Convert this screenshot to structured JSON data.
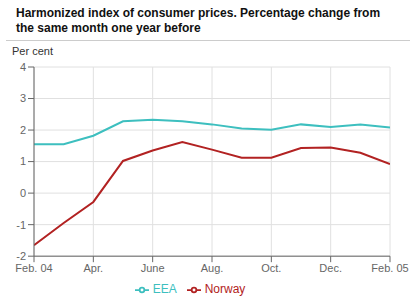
{
  "chart_data": {
    "type": "line",
    "title": "Harmonized index of consumer prices. Percentage change from the same month one year before",
    "y_label": "Per cent",
    "x": [
      0,
      1,
      2,
      3,
      4,
      5,
      6,
      7,
      8,
      9,
      10,
      11,
      12
    ],
    "xlim": [
      0,
      12
    ],
    "xticks": [
      {
        "value": 0,
        "label": "Feb. 04"
      },
      {
        "value": 2,
        "label": "Apr."
      },
      {
        "value": 4,
        "label": "June"
      },
      {
        "value": 6,
        "label": "Aug."
      },
      {
        "value": 8,
        "label": "Oct."
      },
      {
        "value": 10,
        "label": "Dec."
      },
      {
        "value": 12,
        "label": "Feb. 05"
      }
    ],
    "ylim": [
      -2,
      4
    ],
    "yticks": [
      -2,
      -1,
      0,
      1,
      2,
      3,
      4
    ],
    "series": [
      {
        "name": "EEA",
        "color": "#3dbfbf",
        "values": [
          1.55,
          1.55,
          1.82,
          2.28,
          2.33,
          2.28,
          2.18,
          2.05,
          2.01,
          2.18,
          2.1,
          2.18,
          2.08
        ]
      },
      {
        "name": "Norway",
        "color": "#b22222",
        "values": [
          -1.65,
          -0.95,
          -0.28,
          1.02,
          1.35,
          1.62,
          1.38,
          1.12,
          1.12,
          1.43,
          1.45,
          1.28,
          0.92
        ]
      }
    ],
    "grid": true,
    "legend": "bottom"
  }
}
